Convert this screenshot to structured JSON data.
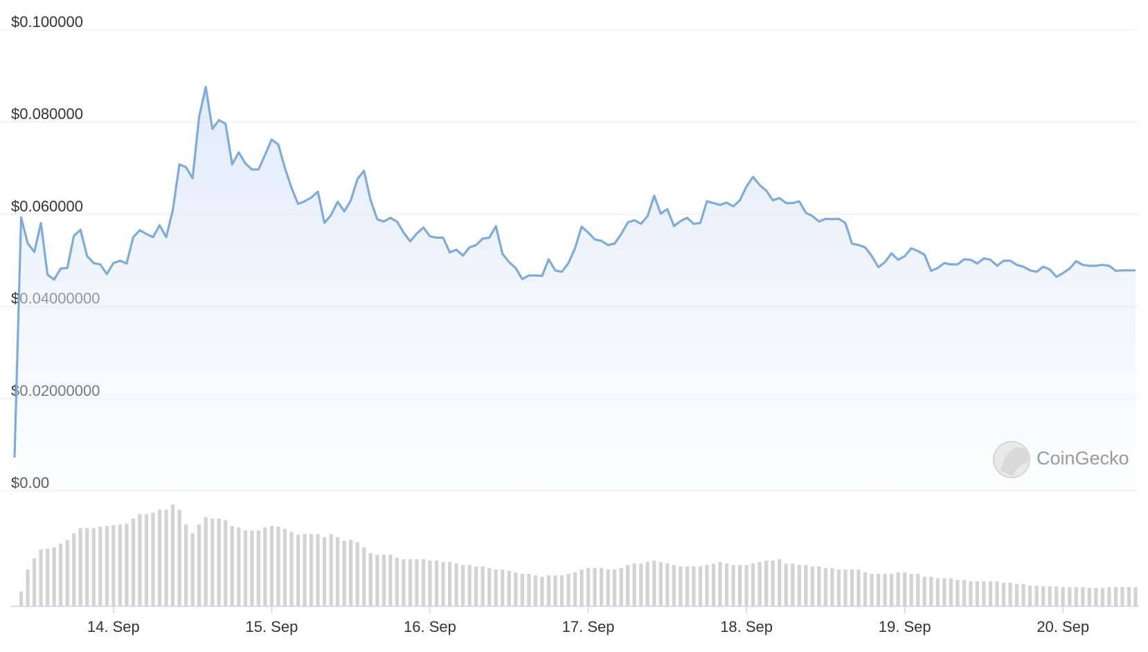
{
  "chart_data": {
    "type": "line",
    "watermark": "CoinGecko",
    "color": "#7faadc",
    "volume_color": "#d3d3d3",
    "grid": true,
    "ylim": [
      0,
      0.1
    ],
    "yticks": [
      {
        "value": 0.1,
        "label": "$0.100000"
      },
      {
        "value": 0.08,
        "label": "$0.080000"
      },
      {
        "value": 0.06,
        "label": "$0.060000"
      },
      {
        "value": 0.04,
        "label": "$0.04000000"
      },
      {
        "value": 0.02,
        "label": "$0.02000000"
      },
      {
        "value": 0,
        "label": "$0.00"
      }
    ],
    "categories": [
      null,
      null,
      null,
      null,
      null,
      null,
      null,
      null,
      null,
      null,
      null,
      null,
      null,
      null,
      null,
      "14. Sep",
      null,
      null,
      null,
      null,
      null,
      null,
      null,
      null,
      null,
      null,
      null,
      null,
      null,
      null,
      null,
      null,
      null,
      null,
      null,
      null,
      null,
      null,
      null,
      "15. Sep",
      null,
      null,
      null,
      null,
      null,
      null,
      null,
      null,
      null,
      null,
      null,
      null,
      null,
      null,
      null,
      null,
      null,
      null,
      null,
      null,
      null,
      null,
      null,
      "16. Sep",
      null,
      null,
      null,
      null,
      null,
      null,
      null,
      null,
      null,
      null,
      null,
      null,
      null,
      null,
      null,
      null,
      null,
      null,
      null,
      null,
      null,
      null,
      null,
      "17. Sep",
      null,
      null,
      null,
      null,
      null,
      null,
      null,
      null,
      null,
      null,
      null,
      null,
      null,
      null,
      null,
      null,
      null,
      null,
      null,
      null,
      null,
      null,
      null,
      "18. Sep",
      null,
      null,
      null,
      null,
      null,
      null,
      null,
      null,
      null,
      null,
      null,
      null,
      null,
      null,
      null,
      null,
      null,
      null,
      null,
      null,
      null,
      null,
      null,
      "19. Sep",
      null,
      null,
      null,
      null,
      null,
      null,
      null,
      null,
      null,
      null,
      null,
      null,
      null,
      null,
      null,
      null,
      null,
      null,
      null,
      null,
      null,
      null,
      null,
      "20. Sep",
      null,
      null,
      null,
      null,
      null,
      null,
      null,
      null,
      null,
      null,
      null
    ],
    "values": [
      0.0072,
      0.0593,
      0.0537,
      0.0518,
      0.0581,
      0.0469,
      0.0458,
      0.0482,
      0.0483,
      0.0553,
      0.0566,
      0.0509,
      0.0494,
      0.0491,
      0.047,
      0.0494,
      0.0499,
      0.0493,
      0.055,
      0.0565,
      0.0557,
      0.055,
      0.0576,
      0.055,
      0.0609,
      0.0708,
      0.0702,
      0.0678,
      0.0812,
      0.0876,
      0.0785,
      0.0804,
      0.0796,
      0.0708,
      0.0734,
      0.071,
      0.0697,
      0.0697,
      0.0729,
      0.0762,
      0.0751,
      0.07,
      0.0657,
      0.0622,
      0.0628,
      0.0636,
      0.0649,
      0.0581,
      0.0598,
      0.0627,
      0.0606,
      0.063,
      0.0676,
      0.0694,
      0.063,
      0.0589,
      0.0584,
      0.0592,
      0.0584,
      0.056,
      0.0541,
      0.0558,
      0.0571,
      0.0552,
      0.0549,
      0.0549,
      0.0517,
      0.0523,
      0.051,
      0.0528,
      0.0533,
      0.0547,
      0.0549,
      0.0574,
      0.0514,
      0.0496,
      0.0483,
      0.0459,
      0.0467,
      0.0467,
      0.0466,
      0.0502,
      0.0478,
      0.0475,
      0.0494,
      0.0526,
      0.0573,
      0.056,
      0.0545,
      0.0542,
      0.0533,
      0.0536,
      0.0557,
      0.0582,
      0.0587,
      0.0579,
      0.0596,
      0.064,
      0.0601,
      0.0611,
      0.0574,
      0.0585,
      0.0592,
      0.0579,
      0.0581,
      0.0628,
      0.0624,
      0.062,
      0.0625,
      0.0617,
      0.063,
      0.066,
      0.0681,
      0.0663,
      0.0651,
      0.063,
      0.0635,
      0.0624,
      0.0624,
      0.0628,
      0.0603,
      0.0596,
      0.0584,
      0.059,
      0.0589,
      0.059,
      0.0581,
      0.0536,
      0.0533,
      0.0528,
      0.0509,
      0.0485,
      0.0496,
      0.0515,
      0.0501,
      0.0509,
      0.0526,
      0.052,
      0.0512,
      0.0477,
      0.0483,
      0.0494,
      0.0491,
      0.0491,
      0.0502,
      0.0501,
      0.0493,
      0.0504,
      0.0501,
      0.0488,
      0.0499,
      0.0499,
      0.049,
      0.0486,
      0.0478,
      0.0475,
      0.0486,
      0.048,
      0.0464,
      0.0472,
      0.0482,
      0.0498,
      0.049,
      0.0488,
      0.0488,
      0.049,
      0.0488,
      0.0477,
      0.0478,
      0.0478,
      0.0478
    ],
    "volume": [
      null,
      20,
      50,
      65,
      77,
      78,
      80,
      85,
      90,
      99,
      106,
      106,
      106,
      108,
      109,
      110,
      111,
      112,
      119,
      125,
      125,
      127,
      131,
      131,
      138,
      131,
      111,
      99,
      111,
      121,
      119,
      119,
      117,
      109,
      107,
      103,
      103,
      103,
      107,
      109,
      108,
      105,
      101,
      97,
      98,
      98,
      98,
      94,
      98,
      94,
      89,
      90,
      87,
      80,
      72,
      70,
      70,
      70,
      66,
      64,
      64,
      64,
      64,
      62,
      62,
      60,
      60,
      58,
      56,
      56,
      54,
      54,
      52,
      50,
      50,
      48,
      46,
      44,
      44,
      42,
      40,
      42,
      42,
      42,
      44,
      46,
      50,
      52,
      52,
      52,
      50,
      50,
      52,
      56,
      58,
      58,
      60,
      62,
      60,
      58,
      56,
      54,
      54,
      54,
      54,
      56,
      58,
      60,
      58,
      56,
      56,
      56,
      58,
      60,
      62,
      62,
      64,
      58,
      58,
      56,
      56,
      54,
      54,
      52,
      52,
      50,
      50,
      50,
      50,
      46,
      44,
      44,
      44,
      44,
      46,
      46,
      44,
      44,
      40,
      40,
      38,
      38,
      38,
      36,
      36,
      34,
      34,
      34,
      34,
      34,
      32,
      32,
      30,
      30,
      28,
      28,
      27,
      27,
      27,
      26,
      26,
      26,
      26,
      25,
      25,
      25,
      26,
      26,
      26,
      26,
      26
    ]
  }
}
